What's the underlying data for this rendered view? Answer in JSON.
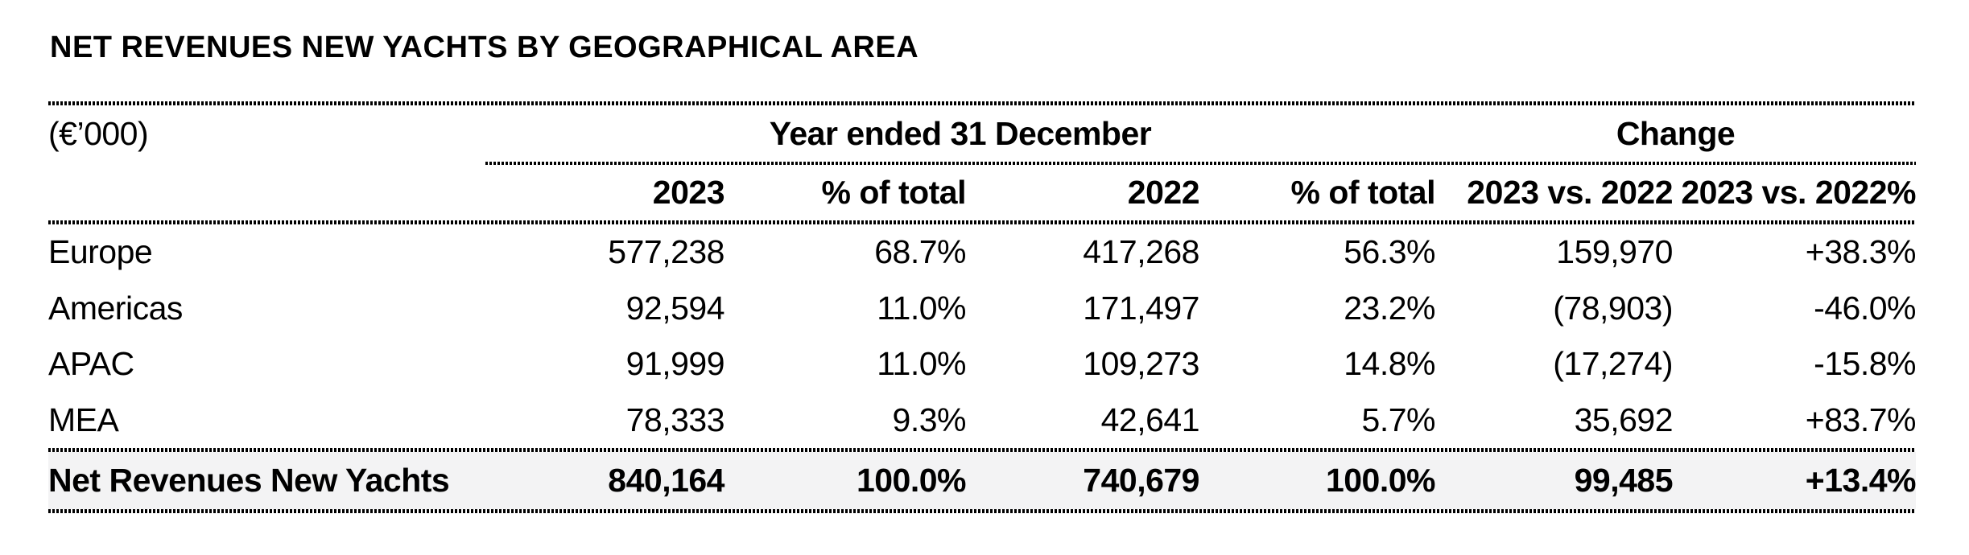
{
  "title": "NET REVENUES NEW YACHTS BY GEOGRAPHICAL AREA",
  "table": {
    "unit_label": "(€’000)",
    "group_headers": [
      {
        "label": "Year ended 31 December"
      },
      {
        "label": "Change"
      }
    ],
    "column_headers": [
      "2023",
      "% of total",
      "2022",
      "% of total",
      "2023 vs. 2022",
      "2023 vs. 2022%"
    ],
    "rows": [
      {
        "label": "Europe",
        "values": [
          "577,238",
          "68.7%",
          "417,268",
          "56.3%",
          "159,970",
          "+38.3%"
        ]
      },
      {
        "label": "Americas",
        "values": [
          "92,594",
          "11.0%",
          "171,497",
          "23.2%",
          "(78,903)",
          "-46.0%"
        ]
      },
      {
        "label": "APAC",
        "values": [
          "91,999",
          "11.0%",
          "109,273",
          "14.8%",
          "(17,274)",
          "-15.8%"
        ]
      },
      {
        "label": "MEA",
        "values": [
          "78,333",
          "9.3%",
          "42,641",
          "5.7%",
          "35,692",
          "+83.7%"
        ]
      }
    ],
    "total_row": {
      "label": "Net Revenues New Yachts",
      "values": [
        "840,164",
        "100.0%",
        "740,679",
        "100.0%",
        "99,485",
        "+13.4%"
      ]
    }
  },
  "colors": {
    "background": "#ffffff",
    "text": "#000000",
    "divider": "#000000",
    "total_row_bg": "#f3f3f4"
  }
}
